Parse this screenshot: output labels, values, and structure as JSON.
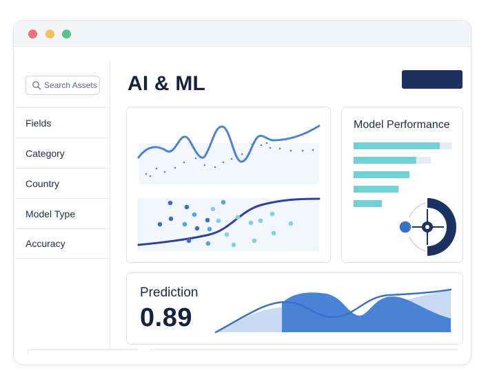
{
  "window": {
    "controls": [
      "close",
      "minimize",
      "maximize"
    ]
  },
  "sidebar": {
    "search": {
      "placeholder": "Search Assets",
      "icon": "search-icon"
    },
    "items": [
      {
        "label": "Fields"
      },
      {
        "label": "Category"
      },
      {
        "label": "Country"
      },
      {
        "label": "Model Type"
      },
      {
        "label": "Accuracy"
      }
    ]
  },
  "header": {
    "title": "AI & ML",
    "action_button_label": ""
  },
  "model_performance": {
    "title": "Model Performance",
    "bar_fill_fractions": [
      0.88,
      0.64,
      0.57,
      0.46,
      0.29
    ],
    "bar_track_fractions": [
      1.0,
      0.79,
      0.57,
      0.46,
      0.29
    ],
    "icon": "radial-network-icon"
  },
  "prediction": {
    "title": "Prediction",
    "value": "0.89"
  },
  "colors": {
    "primary_navy": "#1d3260",
    "chart_blue": "#4a83d6",
    "teal": "#72d1d6",
    "light_blue_fill": "#c9dbf2",
    "dot_dark": "#3b6fc8",
    "dot_light": "#7fd0ea"
  }
}
